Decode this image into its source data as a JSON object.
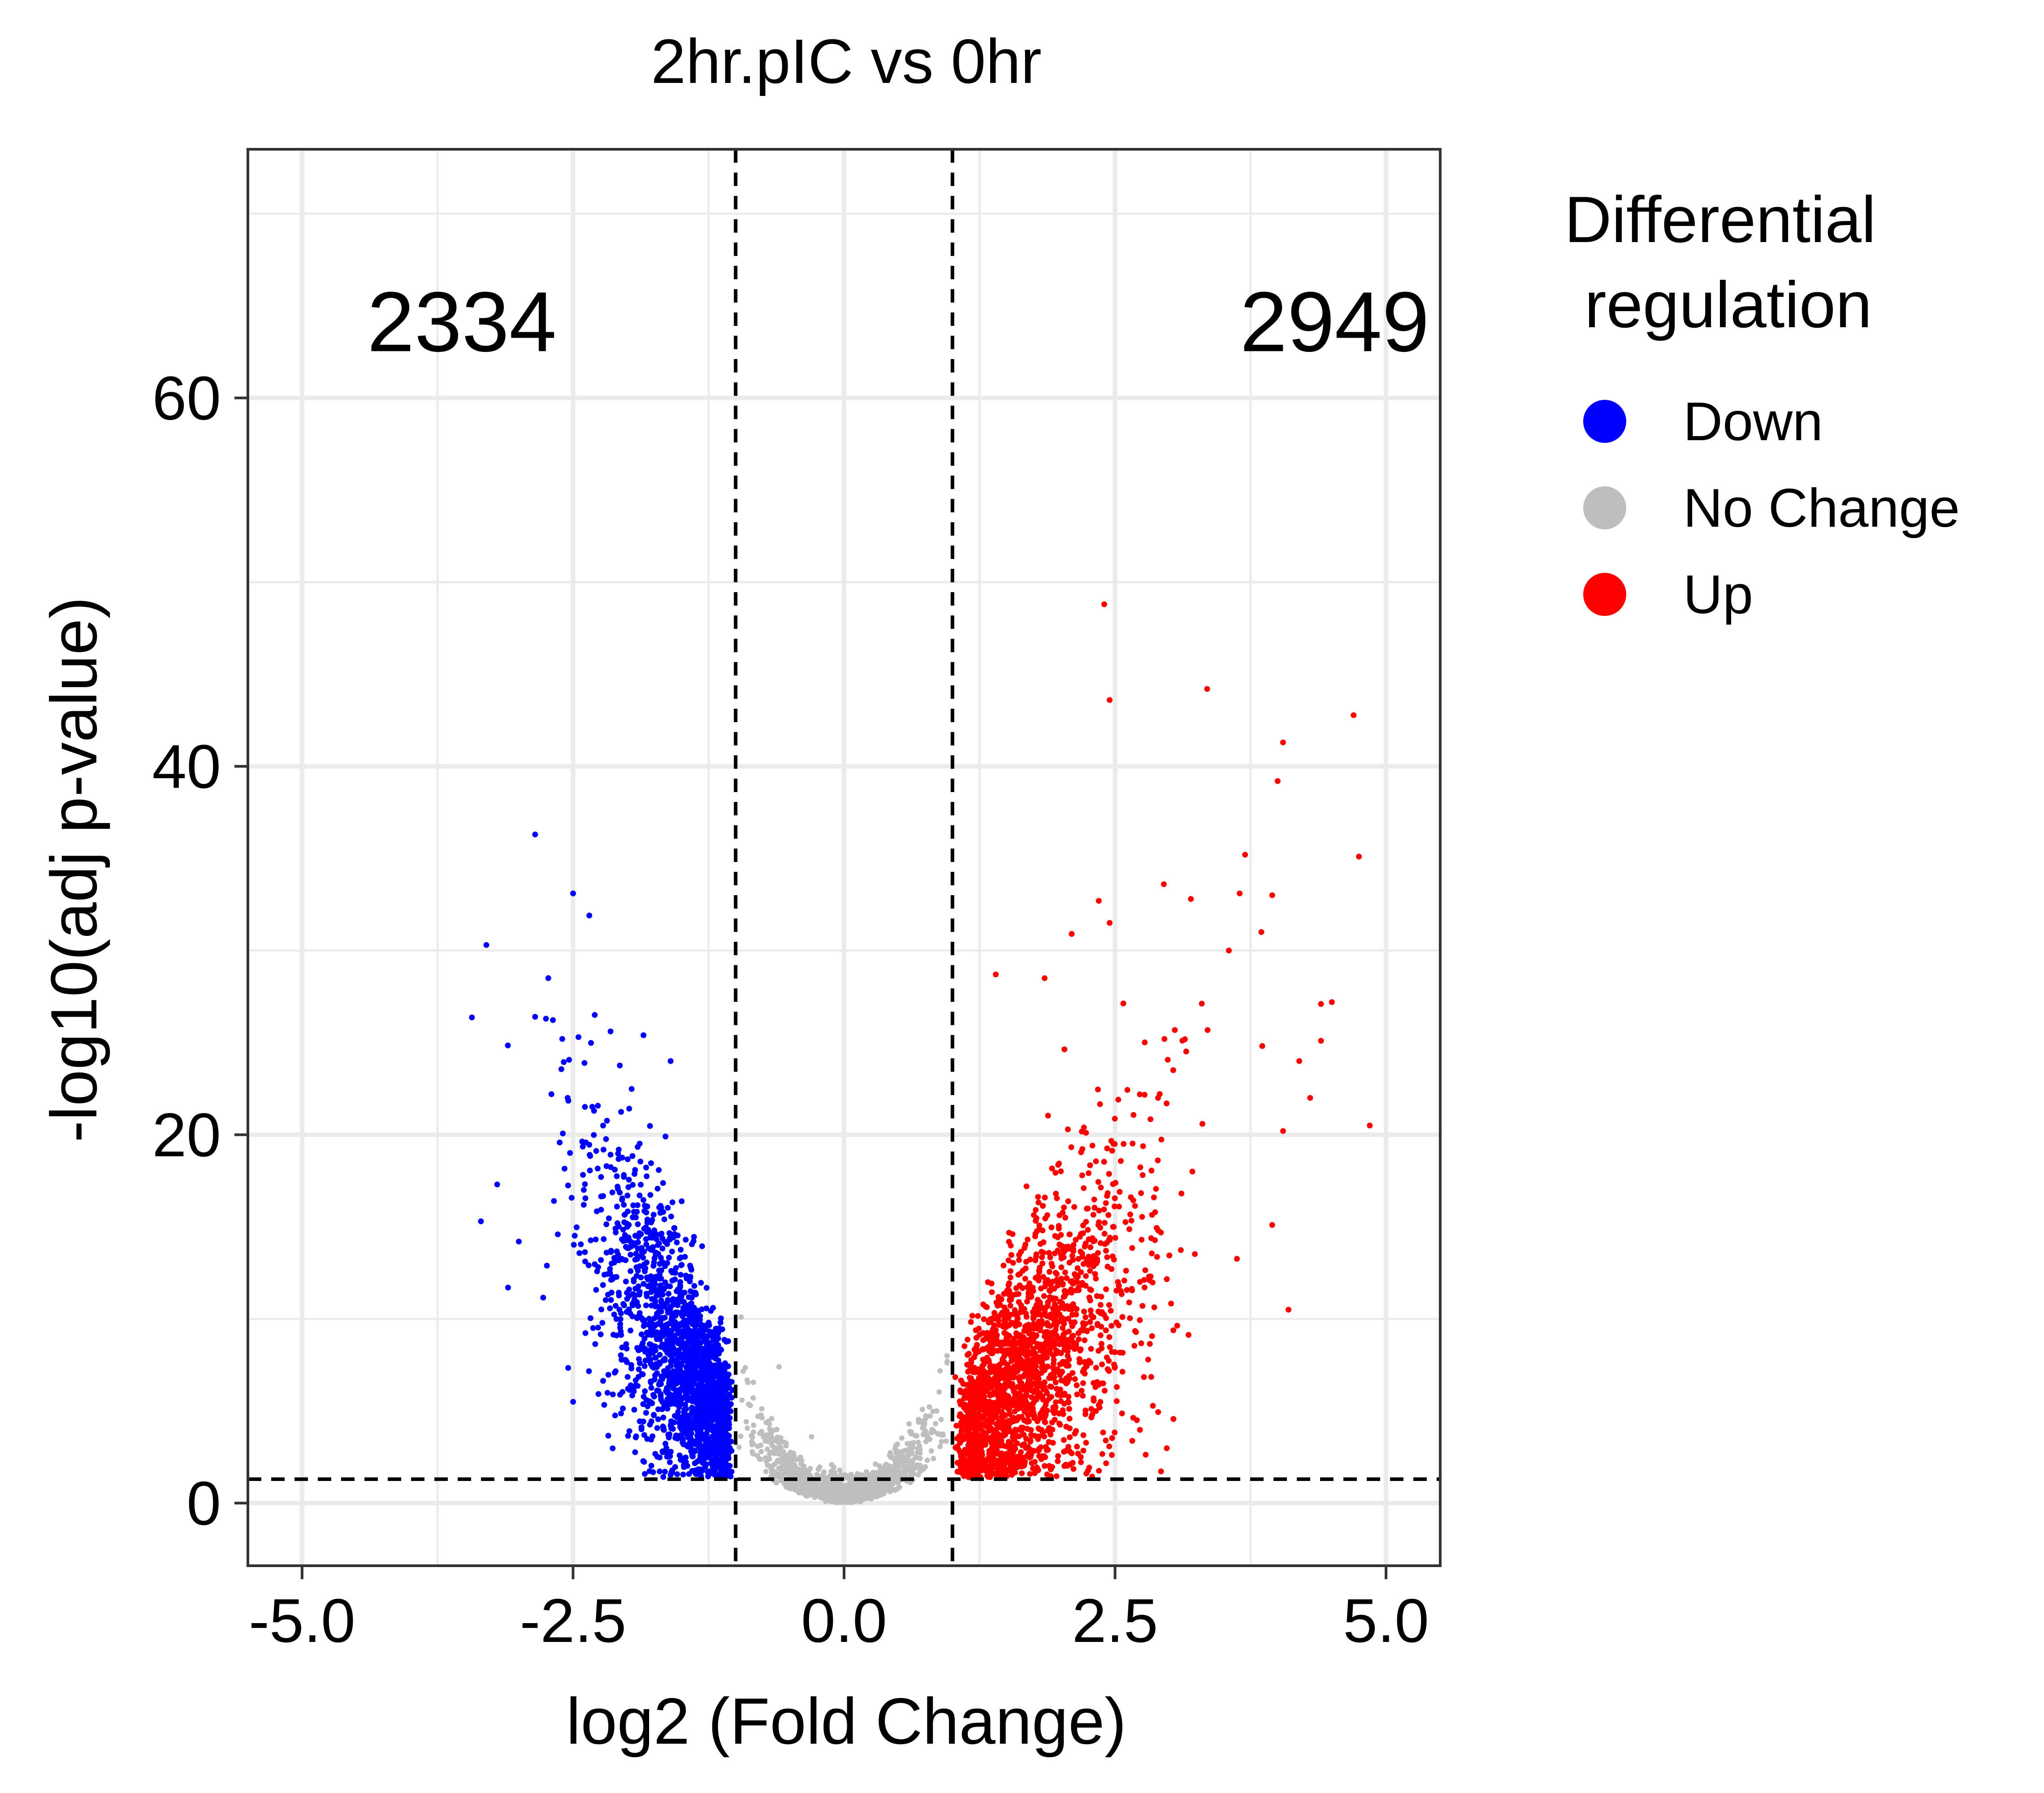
{
  "chart_data": {
    "type": "scatter",
    "title": "2hr.pIC vs 0hr",
    "xlabel": "log2 (Fold Change)",
    "ylabel": "-log10(adj p-value)",
    "xlim": [
      -5.5,
      5.5
    ],
    "ylim": [
      -3.4,
      73.5
    ],
    "x_ticks": [
      -5.0,
      -2.5,
      0.0,
      2.5,
      5.0
    ],
    "x_tick_labels": [
      "-5.0",
      "-2.5",
      "0.0",
      "2.5",
      "5.0"
    ],
    "y_ticks": [
      0,
      20,
      40,
      60
    ],
    "y_tick_labels": [
      "0",
      "20",
      "40",
      "60"
    ],
    "grid": true,
    "thresholds": {
      "x": [
        -1,
        1
      ],
      "y": 1.3
    },
    "annotations": [
      {
        "text": "2334",
        "x": -4.4,
        "y": 64,
        "color": "#0000ff",
        "anchor": "start"
      },
      {
        "text": "2949",
        "x": 5.4,
        "y": 64,
        "color": "#ff0000",
        "anchor": "end"
      }
    ],
    "legend": {
      "title": "Differential\nregulation",
      "position": "right",
      "entries": [
        {
          "label": "Down",
          "color": "#0000ff"
        },
        {
          "label": "No Change",
          "color": "#bebebe"
        },
        {
          "label": "Up",
          "color": "#ff0000"
        }
      ]
    },
    "series": [
      {
        "name": "Down",
        "color": "#0000ff",
        "n": 2334,
        "points": [
          [
            -2.85,
            36.3
          ],
          [
            -2.5,
            33.1
          ],
          [
            -2.35,
            31.9
          ],
          [
            -3.3,
            30.3
          ],
          [
            -2.85,
            26.4
          ],
          [
            -2.75,
            26.3
          ],
          [
            -2.3,
            26.5
          ],
          [
            -2.45,
            25.3
          ],
          [
            -2.6,
            25.2
          ],
          [
            -1.85,
            25.4
          ],
          [
            -1.6,
            24.0
          ],
          [
            -2.7,
            22.2
          ],
          [
            -2.55,
            22.0
          ],
          [
            -3.2,
            17.3
          ],
          [
            -3.35,
            15.3
          ],
          [
            -3.0,
            14.2
          ],
          [
            -3.1,
            11.7
          ],
          [
            -2.5,
            5.5
          ]
        ]
      },
      {
        "name": "Up",
        "color": "#ff0000",
        "n": 2949,
        "points": [
          [
            2.4,
            48.8
          ],
          [
            2.45,
            43.6
          ],
          [
            3.35,
            44.2
          ],
          [
            4.05,
            41.3
          ],
          [
            4.0,
            39.2
          ],
          [
            3.7,
            35.2
          ],
          [
            4.75,
            35.1
          ],
          [
            2.35,
            32.7
          ],
          [
            2.95,
            33.6
          ],
          [
            3.2,
            32.8
          ],
          [
            3.65,
            33.1
          ],
          [
            3.95,
            33.0
          ],
          [
            3.85,
            31.0
          ],
          [
            2.1,
            30.9
          ],
          [
            2.45,
            31.5
          ],
          [
            4.4,
            27.1
          ],
          [
            4.5,
            27.2
          ],
          [
            4.4,
            25.1
          ],
          [
            4.3,
            22.0
          ],
          [
            4.85,
            20.5
          ],
          [
            4.05,
            20.2
          ],
          [
            4.1,
            10.5
          ],
          [
            3.95,
            15.1
          ],
          [
            1.4,
            28.7
          ],
          [
            1.85,
            28.5
          ],
          [
            3.55,
            30.0
          ],
          [
            4.2,
            24.0
          ]
        ]
      },
      {
        "name": "No Change",
        "color": "#bebebe",
        "points": [
          [
            -0.95,
            10.1
          ],
          [
            -0.6,
            7.4
          ],
          [
            -0.3,
            3.6
          ],
          [
            0.1,
            0.5
          ],
          [
            0.6,
            4.3
          ],
          [
            0.95,
            8.0
          ],
          [
            1.2,
            2.0
          ]
        ]
      }
    ]
  }
}
